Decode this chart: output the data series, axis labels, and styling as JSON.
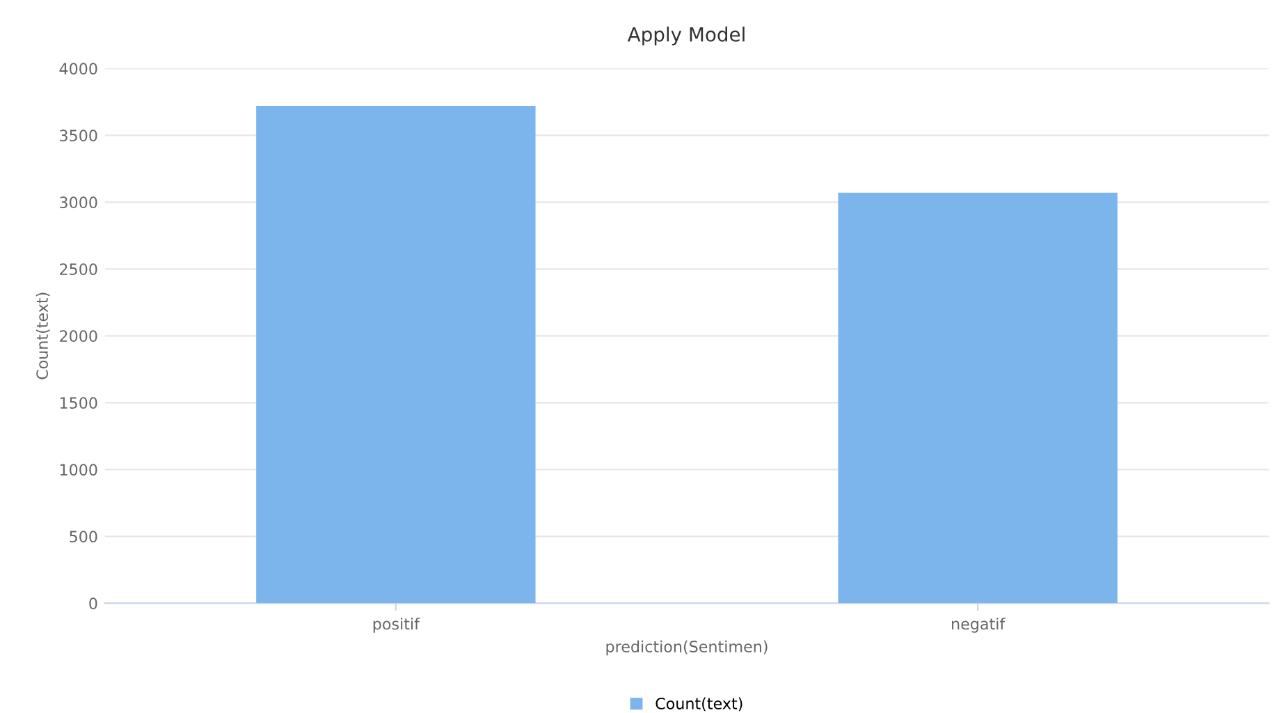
{
  "chart_data": {
    "type": "bar",
    "title": "Apply Model",
    "xlabel": "prediction(Sentimen)",
    "ylabel": "Count(text)",
    "categories": [
      "positif",
      "negatif"
    ],
    "series": [
      {
        "name": "Count(text)",
        "color": "#7cb5ec",
        "values": [
          3720,
          3070
        ]
      }
    ],
    "ylim": [
      0,
      4000
    ],
    "yticks": [
      0,
      500,
      1000,
      1500,
      2000,
      2500,
      3000,
      3500,
      4000
    ],
    "grid": "y",
    "legend": "bottom"
  }
}
